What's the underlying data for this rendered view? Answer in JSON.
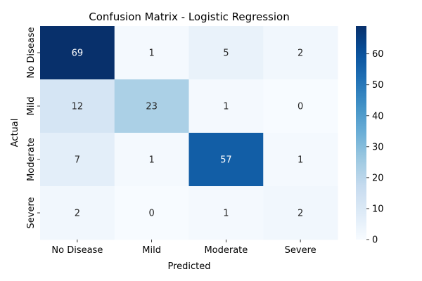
{
  "chart_data": {
    "type": "heatmap",
    "title": "Confusion Matrix - Logistic Regression",
    "xlabel": "Predicted",
    "ylabel": "Actual",
    "x_categories": [
      "No Disease",
      "Mild",
      "Moderate",
      "Severe"
    ],
    "y_categories": [
      "No Disease",
      "Mild",
      "Moderate",
      "Severe"
    ],
    "values": [
      [
        69,
        1,
        5,
        2
      ],
      [
        12,
        23,
        1,
        0
      ],
      [
        7,
        1,
        57,
        1
      ],
      [
        2,
        0,
        1,
        2
      ]
    ],
    "colormap": "Blues",
    "color_range": [
      0,
      69
    ],
    "colorbar_ticks": [
      "0",
      "10",
      "20",
      "30",
      "40",
      "50",
      "60"
    ],
    "annotations": true
  }
}
